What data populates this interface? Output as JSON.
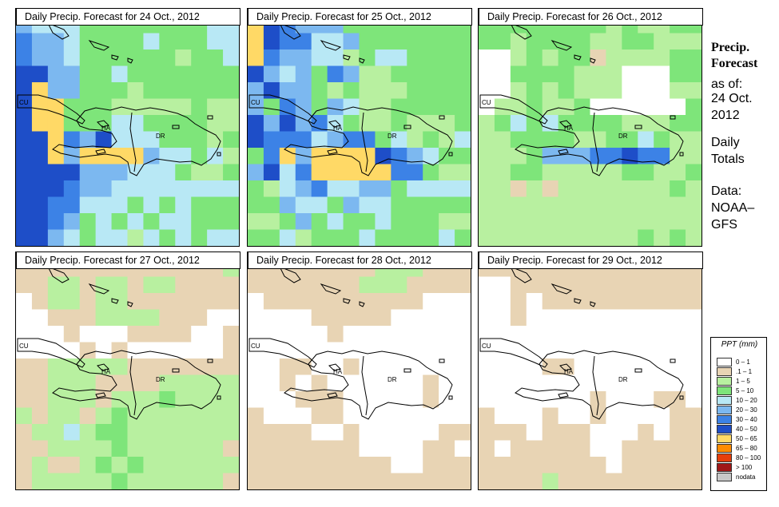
{
  "panels": [
    {
      "title": "Daily Precip. Forecast for  24 Oct., 2012",
      "grid": [
        "54443333333344",
        "65543333433344",
        "65543333332334",
        "77553343333333",
        "78553332333333",
        "78833322222322",
        "78833344333322",
        "77865744433323",
        "77858888544342",
        "77775554443223",
        "77765544444444",
        "77664443434333",
        "77653434344333",
        "77543442434344"
      ]
    },
    {
      "title": "Daily Precip. Forecast for  25 Oct., 2012",
      "grid": [
        "87655533333333",
        "87664453333333",
        "86554423443333",
        "75453652233333",
        "57553232223333",
        "53653542233333",
        "75756432232223",
        "76664566342324",
        "36858888765433",
        "57468888866322",
        "32456445534444",
        "33544354433333",
        "22353433433322",
        "33423334333343"
      ]
    },
    {
      "title": "Daily Precip. Forecast for  26 Oct., 2012",
      "grid": [
        "33333333232233",
        "33233332233222",
        "00232331222233",
        "00333322200033",
        "00232322200022",
        "02232230000003",
        "23434333322233",
        "22333322334322",
        "22235556676622",
        "22332222233223",
        "22121222222232",
        "22222222222222",
        "22222222222222",
        "22222222223232"
      ]
    },
    {
      "title": "Daily Precip. Forecast for  27 Oct., 2012",
      "grid": [
        "11111111111112",
        "11221221221111",
        "01221221111111",
        "00111222211100",
        "00010001111001",
        "00001010000001",
        "11222221111111",
        "11222111122222",
        "11222122232222",
        "21221232222222",
        "12242332222222",
        "11222232222221",
        "12112323222222",
        "12222232222221"
      ]
    },
    {
      "title": "Daily Precip. Forecast for  28 Oct., 2012",
      "grid": [
        "11111111222111",
        "11111112221111",
        "01111111111000",
        "00001111100000",
        "00000100000000",
        "00000000000000",
        "00110010000000",
        "00101000000100",
        "00011100000100",
        "10001100000000",
        "11110010000011",
        "11111110000110",
        "11111111100111",
        "11111111111111"
      ]
    },
    {
      "title": "Daily Precip. Forecast for  29 Oct., 2012",
      "grid": [
        "11111111111111",
        "00111111111111",
        "00101111111111",
        "00100000000000",
        "00000000000000",
        "00000000000000",
        "00001100000000",
        "00000000000000",
        "00000001000110",
        "10001001000011",
        "11101110001011",
        "10111110011111",
        "11111111011111",
        "11112111111111"
      ]
    }
  ],
  "country_labels": {
    "cu": "CU",
    "ha": "HA",
    "dr": "DR"
  },
  "side": {
    "heading_line1": "Precip.",
    "heading_line2": "Forecast",
    "asof_line1": "as of:",
    "asof_line2": "24 Oct.",
    "asof_line3": "2012",
    "daily_line1": "Daily",
    "daily_line2": "Totals",
    "data_line1": "Data:",
    "data_line2": "NOAA–",
    "data_line3": "GFS"
  },
  "legend": {
    "title": "PPT (mm)",
    "items": [
      {
        "label": "0 – 1",
        "color": "#ffffff"
      },
      {
        "label": ".1 – 1",
        "color": "#e8d4b4"
      },
      {
        "label": "1 – 5",
        "color": "#b8f0a0"
      },
      {
        "label": "5 – 10",
        "color": "#7ee57a"
      },
      {
        "label": "10 – 20",
        "color": "#b8e8f5"
      },
      {
        "label": "20 – 30",
        "color": "#7cb8f0"
      },
      {
        "label": "30 – 40",
        "color": "#3c82e6"
      },
      {
        "label": "40 – 50",
        "color": "#1e4ec8"
      },
      {
        "label": "50 – 65",
        "color": "#ffd966"
      },
      {
        "label": "65 – 80",
        "color": "#ff8c00"
      },
      {
        "label": "80 – 100",
        "color": "#e63e0a"
      },
      {
        "label": "> 100",
        "color": "#a01818"
      },
      {
        "label": "nodata",
        "color": "#c8c8c8"
      }
    ]
  }
}
